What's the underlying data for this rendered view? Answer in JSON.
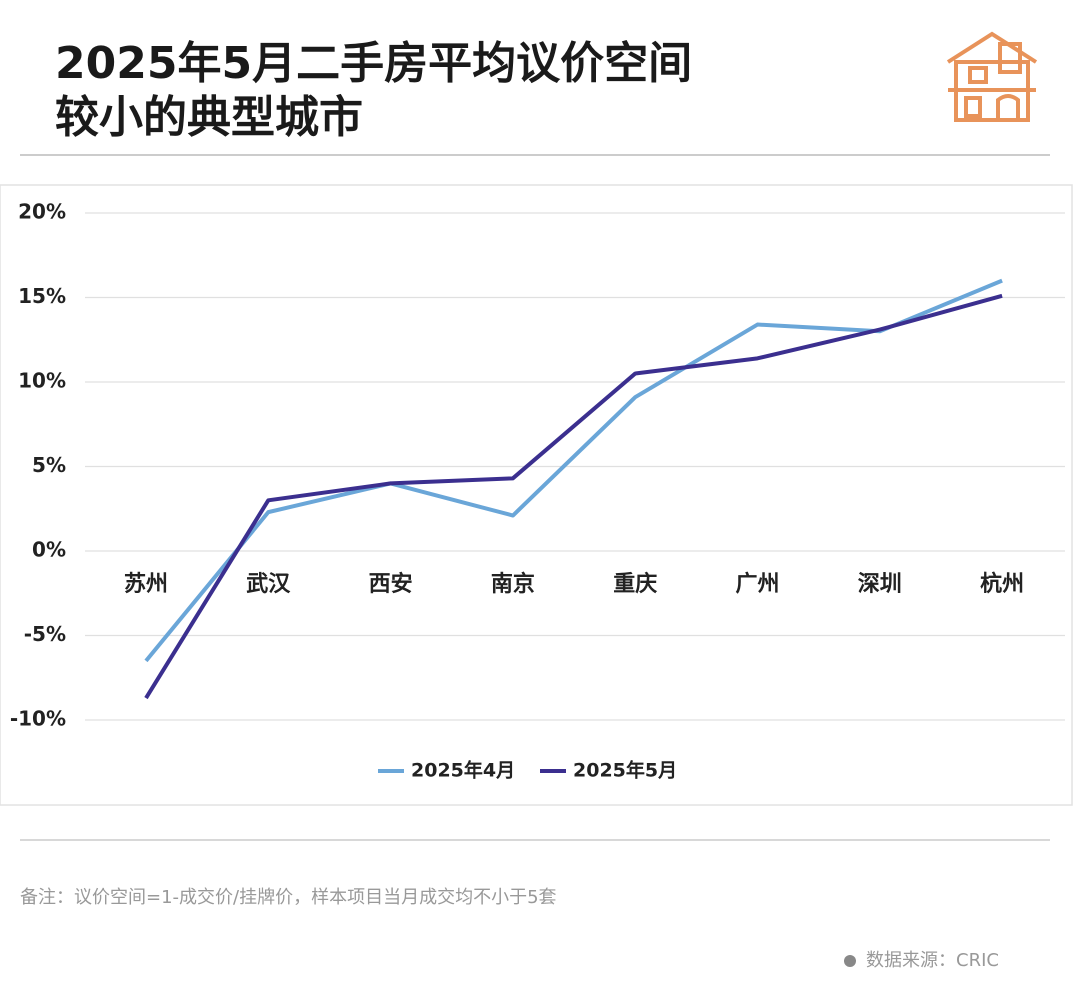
{
  "chart_data": {
    "type": "line",
    "title_lines": [
      "2025年5月二手房平均议价空间",
      "较小的典型城市"
    ],
    "categories": [
      "苏州",
      "武汉",
      "西安",
      "南京",
      "重庆",
      "广州",
      "深圳",
      "杭州"
    ],
    "series": [
      {
        "name": "2025年4月",
        "color": "#6aa6d8",
        "values": [
          -6.5,
          2.3,
          4.0,
          2.1,
          9.1,
          13.4,
          13.0,
          16.0
        ]
      },
      {
        "name": "2025年5月",
        "color": "#3b2f8f",
        "values": [
          -8.7,
          3.0,
          4.0,
          4.3,
          10.5,
          11.4,
          13.1,
          15.1
        ]
      }
    ],
    "ylim": [
      -10,
      20
    ],
    "yticks": [
      {
        "value": 20,
        "label": "20%"
      },
      {
        "value": 15,
        "label": "15%"
      },
      {
        "value": 10,
        "label": "10%"
      },
      {
        "value": 5,
        "label": "5%"
      },
      {
        "value": 0,
        "label": "0%"
      },
      {
        "value": -5,
        "label": "-5%"
      },
      {
        "value": -10,
        "label": "-10%"
      }
    ],
    "grid": true,
    "note": "备注：议价空间=1-成交价/挂牌价，样本项目当月成交均不小于5套",
    "source": "数据来源：CRIC"
  }
}
